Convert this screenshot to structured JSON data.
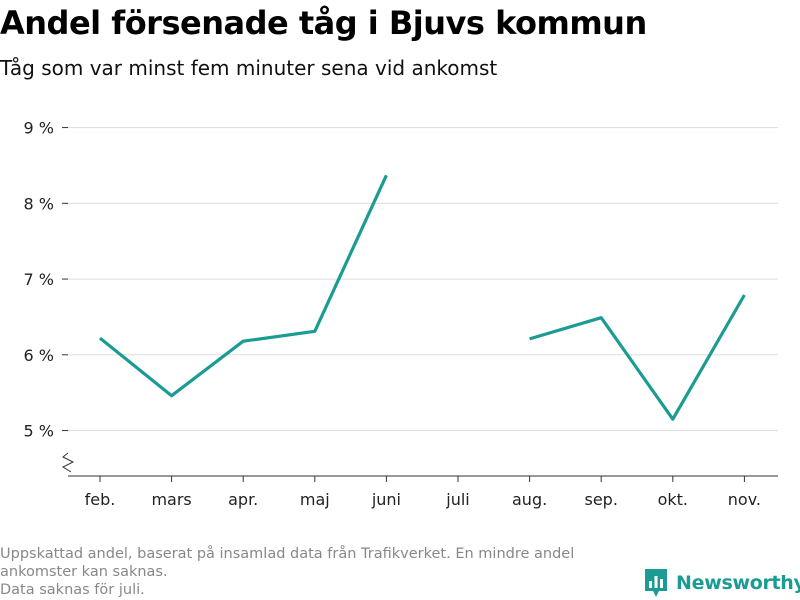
{
  "header": {
    "title": "Andel försenade tåg i Bjuvs kommun",
    "subtitle": "Tåg som var minst fem minuter sena vid ankomst"
  },
  "footnote": {
    "line1": "Uppskattad andel, baserat på insamlad data från Trafikverket. En mindre andel",
    "line2": "ankomster kan saknas.",
    "line3": "Data saknas för juli."
  },
  "brand": {
    "name": "Newsworthy",
    "icon": "newsworthy-logo-icon",
    "color": "#1a9c94"
  },
  "chart_data": {
    "type": "line",
    "categories": [
      "feb.",
      "mars",
      "apr.",
      "maj",
      "juni",
      "juli",
      "aug.",
      "sep.",
      "okt.",
      "nov."
    ],
    "series": [
      {
        "values": [
          6.22,
          5.46,
          6.18,
          6.31,
          8.37,
          null,
          6.21,
          6.49,
          5.15,
          6.79
        ],
        "color": "#1a9c94"
      }
    ],
    "y_ticks": [
      5,
      6,
      7,
      8,
      9
    ],
    "y_tick_labels": [
      "5 %",
      "6 %",
      "7 %",
      "8 %",
      "9 %"
    ],
    "ylim": [
      4.4,
      9.1
    ],
    "axis_break": true,
    "grid": true,
    "legend": "none"
  }
}
